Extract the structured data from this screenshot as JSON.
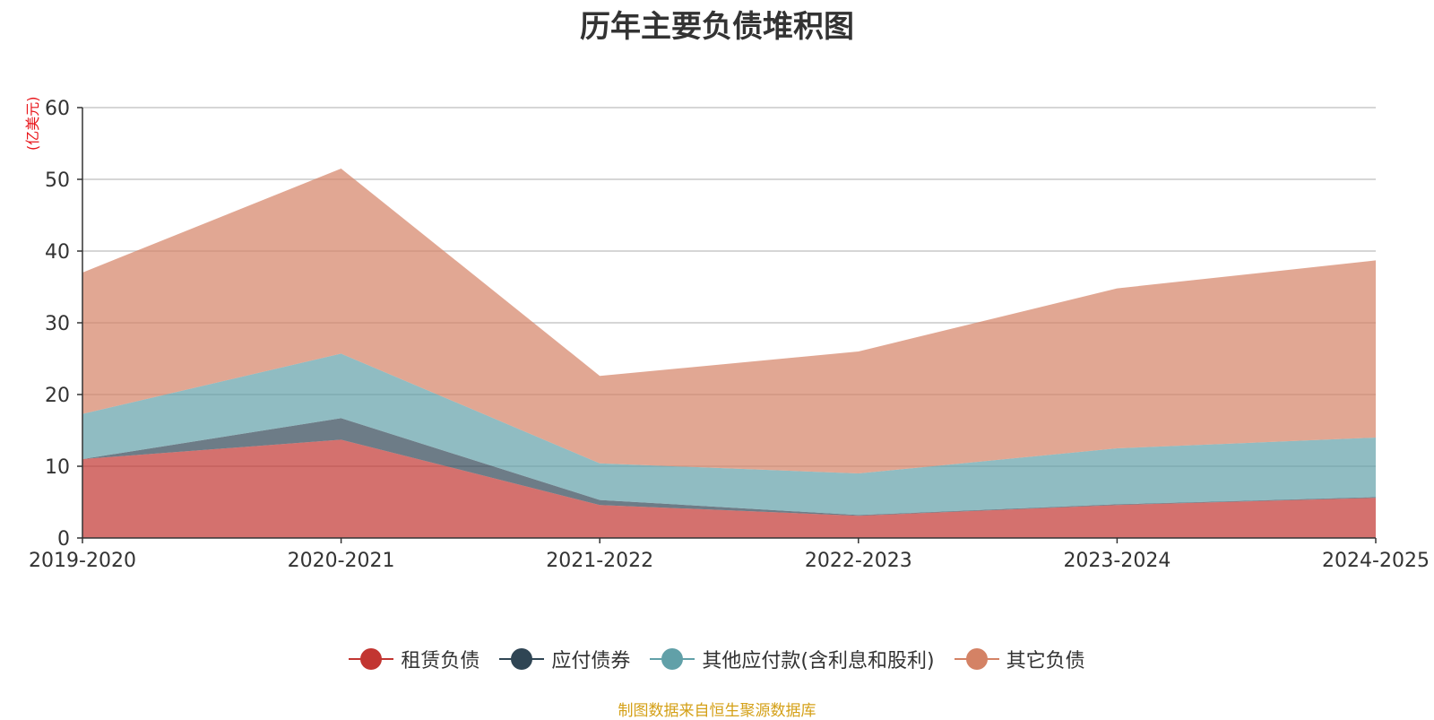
{
  "chart_data": {
    "type": "area",
    "stacked": true,
    "title": "历年主要负债堆积图",
    "ylabel": "(亿美元)",
    "xlabel": "",
    "ylim": [
      0,
      60
    ],
    "yticks": [
      0,
      10,
      20,
      30,
      40,
      50,
      60
    ],
    "grid": true,
    "legend_position": "bottom",
    "categories": [
      "2019-2020",
      "2020-2021",
      "2021-2022",
      "2022-2023",
      "2023-2024",
      "2024-2025"
    ],
    "series": [
      {
        "name": "租赁负债",
        "color": "#c23531",
        "values": [
          11.0,
          13.7,
          4.6,
          3.1,
          4.6,
          5.6
        ]
      },
      {
        "name": "应付债券",
        "color": "#2f4554",
        "values": [
          0.0,
          3.0,
          0.7,
          0.1,
          0.1,
          0.1
        ]
      },
      {
        "name": "其他应付款(含利息和股利)",
        "color": "#61a0a8",
        "values": [
          6.3,
          9.0,
          5.1,
          5.8,
          7.8,
          8.3
        ]
      },
      {
        "name": "其它负债",
        "color": "#d48265",
        "values": [
          19.7,
          25.8,
          12.2,
          17.0,
          22.3,
          24.7
        ]
      }
    ]
  },
  "source_note": "制图数据来自恒生聚源数据库"
}
